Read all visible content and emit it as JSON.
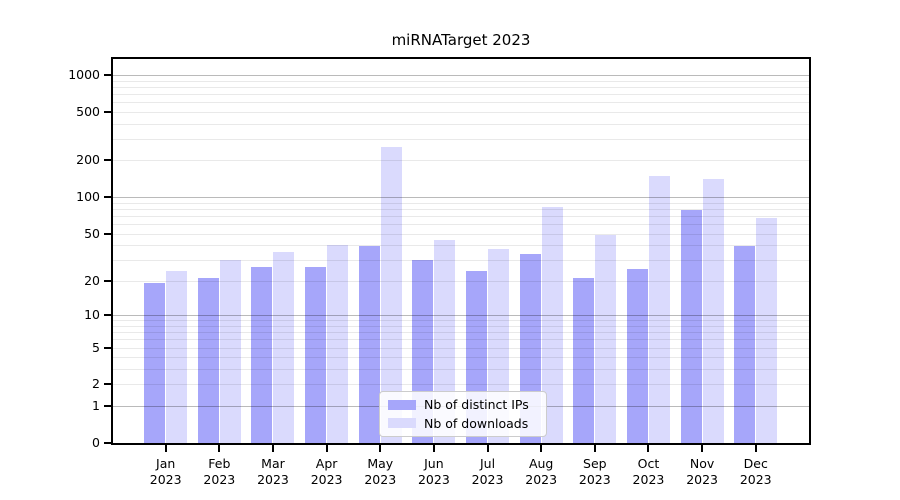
{
  "chart_data": {
    "type": "bar",
    "title": "miRNATarget 2023",
    "categories": [
      "Jan 2023",
      "Feb 2023",
      "Mar 2023",
      "Apr 2023",
      "May 2023",
      "Jun 2023",
      "Jul 2023",
      "Aug 2023",
      "Sep 2023",
      "Oct 2023",
      "Nov 2023",
      "Dec 2023"
    ],
    "month_labels": [
      {
        "line1": "Jan",
        "line2": "2023"
      },
      {
        "line1": "Feb",
        "line2": "2023"
      },
      {
        "line1": "Mar",
        "line2": "2023"
      },
      {
        "line1": "Apr",
        "line2": "2023"
      },
      {
        "line1": "May",
        "line2": "2023"
      },
      {
        "line1": "Jun",
        "line2": "2023"
      },
      {
        "line1": "Jul",
        "line2": "2023"
      },
      {
        "line1": "Aug",
        "line2": "2023"
      },
      {
        "line1": "Sep",
        "line2": "2023"
      },
      {
        "line1": "Oct",
        "line2": "2023"
      },
      {
        "line1": "Nov",
        "line2": "2023"
      },
      {
        "line1": "Dec",
        "line2": "2023"
      }
    ],
    "series": [
      {
        "name": "Nb of distinct IPs",
        "color": "#a6a6fa",
        "values": [
          19,
          21,
          26,
          26,
          39,
          30,
          24,
          34,
          21,
          25,
          78,
          39
        ]
      },
      {
        "name": "Nb of downloads",
        "color": "#dadafd",
        "values": [
          24,
          30,
          35,
          40,
          260,
          44,
          37,
          83,
          49,
          150,
          140,
          67
        ]
      }
    ],
    "yscale": "log(value+1)",
    "ytick_labels": [
      1000,
      500,
      200,
      100,
      50,
      20,
      10,
      5,
      2,
      1,
      0
    ],
    "grid_major_values": [
      1,
      10,
      100,
      1000
    ],
    "grid_minor_values": [
      2,
      3,
      4,
      5,
      6,
      7,
      8,
      9,
      20,
      30,
      40,
      50,
      60,
      70,
      80,
      90,
      200,
      300,
      400,
      500,
      600,
      700,
      800,
      900
    ],
    "ylim": [
      0,
      1348
    ],
    "grid": true,
    "legend_position": "lower center"
  },
  "colors": {
    "background": "#ffffff",
    "spine": "#000000",
    "grid_major": "rgba(0,0,0,0.27)",
    "grid_minor": "rgba(0,0,0,0.085)",
    "bar_distinct_ips": "#a6a6fa",
    "bar_downloads": "#dadafd"
  }
}
